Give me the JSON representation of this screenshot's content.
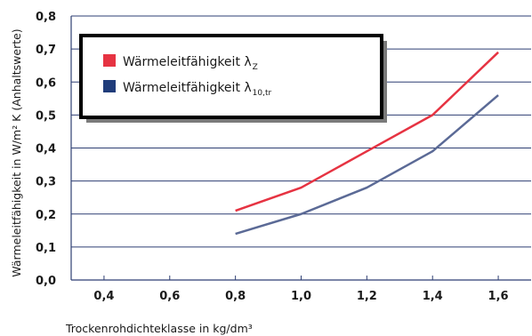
{
  "chart_data": {
    "type": "line",
    "xlabel": "Trockenrohdichteklasse in kg/dm³",
    "ylabel": "Wärmeleitfähigkeit in W/m² K (Anhaltswerte)",
    "xlim": [
      0.3,
      1.7
    ],
    "ylim": [
      0,
      0.8
    ],
    "x_ticks": [
      "0,4",
      "0,6",
      "0,8",
      "1,0",
      "1,2",
      "1,4",
      "1,6"
    ],
    "x_tick_values": [
      0.4,
      0.6,
      0.8,
      1.0,
      1.2,
      1.4,
      1.6
    ],
    "y_ticks": [
      "0,0",
      "0,1",
      "0,2",
      "0,3",
      "0,4",
      "0,5",
      "0,6",
      "0,7",
      "0,8"
    ],
    "y_tick_values": [
      0,
      0.1,
      0.2,
      0.3,
      0.4,
      0.5,
      0.6,
      0.7,
      0.8
    ],
    "grid": "horizontal",
    "legend_position": "top-left",
    "series": [
      {
        "label_main": "Wärmeleitfähigkeit λ",
        "label_sub": "Z",
        "color": "#e63342",
        "x": [
          0.8,
          1.0,
          1.2,
          1.4,
          1.6
        ],
        "y": [
          0.21,
          0.28,
          0.39,
          0.5,
          0.69
        ]
      },
      {
        "label_main": "Wärmeleitfähigkeit λ",
        "label_sub": "10,tr",
        "color": "#5b6a96",
        "swatch_color": "#1f3c7a",
        "x": [
          0.8,
          1.0,
          1.2,
          1.4,
          1.6
        ],
        "y": [
          0.14,
          0.2,
          0.28,
          0.39,
          0.56
        ]
      }
    ]
  }
}
